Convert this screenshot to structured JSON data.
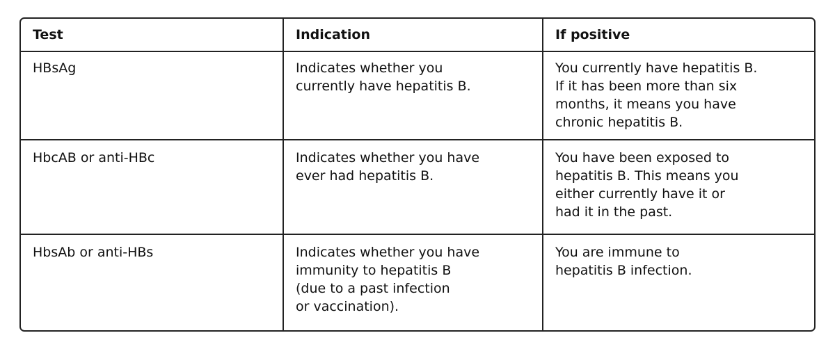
{
  "table": {
    "header": [
      "Test",
      "Indication",
      "If positive"
    ],
    "rows": [
      [
        [
          "HBsAg"
        ],
        [
          "Indicates whether you",
          "currently have hepatitis B."
        ],
        [
          "You currently have hepatitis B.",
          "If it has been more than six",
          "months, it means you have",
          "chronic hepatitis B."
        ]
      ],
      [
        [
          "HbcAB or anti-HBc"
        ],
        [
          "Indicates whether you have",
          "ever had hepatitis B."
        ],
        [
          "You have been exposed to",
          "hepatitis B. This means you",
          "either currently have it or",
          "had it in the past."
        ]
      ],
      [
        [
          "HbsAb or anti-HBs"
        ],
        [
          "Indicates whether you have",
          "immunity to hepatitis B",
          "(due to a past infection",
          "or vaccination)."
        ],
        [
          "You are immune to",
          "hepatitis B infection."
        ]
      ]
    ]
  }
}
